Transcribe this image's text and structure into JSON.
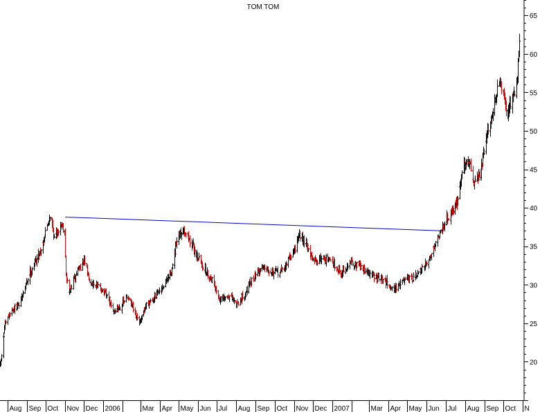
{
  "chart_data": {
    "type": "ohlc",
    "title": "TOM TOM",
    "xlabel": "",
    "ylabel": "",
    "ylim": [
      15,
      67
    ],
    "yticks": [
      20,
      25,
      30,
      35,
      40,
      45,
      50,
      55,
      60,
      65
    ],
    "grid": false,
    "x_axis_position": "bottom",
    "y_axis_position": "right",
    "x_range": [
      "2005-07-20",
      "2007-11-01"
    ],
    "month_labels": [
      {
        "date": "2005-08-01",
        "label": "Aug"
      },
      {
        "date": "2005-09-01",
        "label": "Sep"
      },
      {
        "date": "2005-10-01",
        "label": "Oct"
      },
      {
        "date": "2005-11-01",
        "label": "Nov"
      },
      {
        "date": "2005-12-01",
        "label": "Dec"
      },
      {
        "date": "2006-01-01",
        "label": "2006"
      },
      {
        "date": "2006-02-01",
        "label": ""
      },
      {
        "date": "2006-03-01",
        "label": "Mar"
      },
      {
        "date": "2006-04-01",
        "label": "Apr"
      },
      {
        "date": "2006-05-01",
        "label": "May"
      },
      {
        "date": "2006-06-01",
        "label": "Jun"
      },
      {
        "date": "2006-07-01",
        "label": "Jul"
      },
      {
        "date": "2006-08-01",
        "label": "Aug"
      },
      {
        "date": "2006-09-01",
        "label": "Sep"
      },
      {
        "date": "2006-10-01",
        "label": "Oct"
      },
      {
        "date": "2006-11-01",
        "label": "Nov"
      },
      {
        "date": "2006-12-01",
        "label": "Dec"
      },
      {
        "date": "2007-01-01",
        "label": "2007"
      },
      {
        "date": "2007-02-01",
        "label": ""
      },
      {
        "date": "2007-03-01",
        "label": "Mar"
      },
      {
        "date": "2007-04-01",
        "label": "Apr"
      },
      {
        "date": "2007-05-01",
        "label": "May"
      },
      {
        "date": "2007-06-01",
        "label": "Jun"
      },
      {
        "date": "2007-07-01",
        "label": "Jul"
      },
      {
        "date": "2007-08-01",
        "label": "Aug"
      },
      {
        "date": "2007-09-01",
        "label": "Sep"
      },
      {
        "date": "2007-10-01",
        "label": "Oct"
      },
      {
        "date": "2007-11-01",
        "label": "N"
      }
    ],
    "price_path": [
      [
        "2005-07-20",
        19.5
      ],
      [
        "2005-07-27",
        24.5
      ],
      [
        "2005-08-05",
        26.5
      ],
      [
        "2005-08-20",
        27.5
      ],
      [
        "2005-09-05",
        31.5
      ],
      [
        "2005-09-25",
        35.0
      ],
      [
        "2005-10-08",
        39.5
      ],
      [
        "2005-10-14",
        36.0
      ],
      [
        "2005-10-25",
        38.0
      ],
      [
        "2005-10-31",
        37.0
      ],
      [
        "2005-11-02",
        31.0
      ],
      [
        "2005-11-08",
        29.0
      ],
      [
        "2005-11-20",
        32.0
      ],
      [
        "2005-12-01",
        33.0
      ],
      [
        "2005-12-10",
        30.5
      ],
      [
        "2005-12-28",
        29.5
      ],
      [
        "2006-01-10",
        28.0
      ],
      [
        "2006-01-15",
        26.5
      ],
      [
        "2006-01-25",
        27.0
      ],
      [
        "2006-02-10",
        28.5
      ],
      [
        "2006-02-20",
        26.0
      ],
      [
        "2006-02-28",
        25.0
      ],
      [
        "2006-03-10",
        27.5
      ],
      [
        "2006-03-25",
        28.5
      ],
      [
        "2006-04-05",
        29.5
      ],
      [
        "2006-04-20",
        32.0
      ],
      [
        "2006-04-28",
        35.5
      ],
      [
        "2006-05-08",
        37.5
      ],
      [
        "2006-05-20",
        35.5
      ],
      [
        "2006-06-01",
        33.5
      ],
      [
        "2006-06-15",
        31.5
      ],
      [
        "2006-06-25",
        30.5
      ],
      [
        "2006-07-05",
        28.0
      ],
      [
        "2006-07-20",
        28.5
      ],
      [
        "2006-08-01",
        27.5
      ],
      [
        "2006-08-15",
        29.0
      ],
      [
        "2006-09-01",
        31.5
      ],
      [
        "2006-09-15",
        32.5
      ],
      [
        "2006-10-01",
        31.5
      ],
      [
        "2006-10-15",
        32.0
      ],
      [
        "2006-11-01",
        34.5
      ],
      [
        "2006-11-10",
        36.5
      ],
      [
        "2006-11-20",
        35.5
      ],
      [
        "2006-12-01",
        33.0
      ],
      [
        "2006-12-15",
        33.5
      ],
      [
        "2007-01-01",
        33.0
      ],
      [
        "2007-01-15",
        31.5
      ],
      [
        "2007-02-01",
        33.0
      ],
      [
        "2007-02-20",
        32.0
      ],
      [
        "2007-03-10",
        31.0
      ],
      [
        "2007-03-25",
        30.5
      ],
      [
        "2007-04-10",
        29.5
      ],
      [
        "2007-04-25",
        30.5
      ],
      [
        "2007-05-10",
        30.8
      ],
      [
        "2007-05-25",
        32.0
      ],
      [
        "2007-06-05",
        33.5
      ],
      [
        "2007-06-20",
        36.5
      ],
      [
        "2007-07-01",
        38.5
      ],
      [
        "2007-07-10",
        39.5
      ],
      [
        "2007-07-20",
        41.0
      ],
      [
        "2007-07-28",
        45.0
      ],
      [
        "2007-08-05",
        46.5
      ],
      [
        "2007-08-15",
        43.5
      ],
      [
        "2007-08-25",
        44.5
      ],
      [
        "2007-09-05",
        49.5
      ],
      [
        "2007-09-15",
        53.0
      ],
      [
        "2007-09-25",
        56.5
      ],
      [
        "2007-10-01",
        54.0
      ],
      [
        "2007-10-08",
        52.0
      ],
      [
        "2007-10-15",
        54.5
      ],
      [
        "2007-10-22",
        56.0
      ],
      [
        "2007-10-26",
        61.0
      ]
    ],
    "annotations": {
      "trendline": {
        "start": [
          "2005-11-01",
          38.8
        ],
        "end": [
          "2007-06-28",
          37.0
        ],
        "color": "#0000cc"
      }
    },
    "colors": {
      "up": "#000000",
      "down": "#dd0000",
      "trendline": "#0000cc",
      "axis": "#000000"
    }
  }
}
